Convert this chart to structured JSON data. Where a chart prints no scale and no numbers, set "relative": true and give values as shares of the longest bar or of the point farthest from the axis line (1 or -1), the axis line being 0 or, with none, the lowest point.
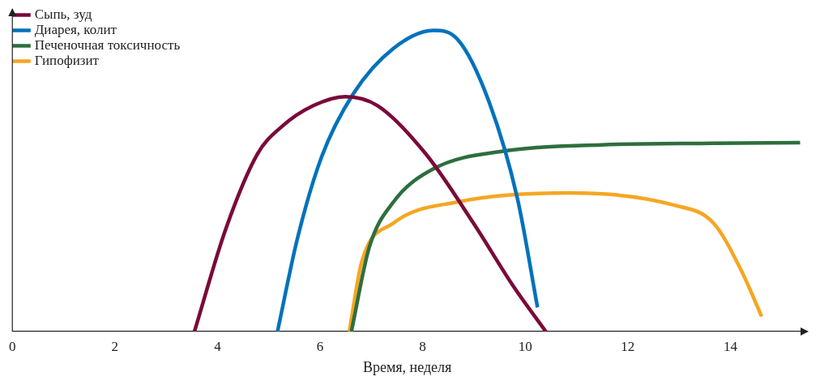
{
  "chart_data": {
    "type": "line",
    "xlabel": "Время, неделя",
    "relative": true,
    "xlim": [
      0,
      15.4
    ],
    "xticks": [
      0,
      2,
      4,
      6,
      8,
      10,
      12,
      14
    ],
    "legend": "top left",
    "grid": false,
    "marker": "none",
    "line_style": "solid",
    "series": [
      {
        "name": "Сыпь, зуд",
        "color": "#7a0a3a",
        "x": [
          3.55,
          4.16,
          4.78,
          5.25,
          5.87,
          6.49,
          7.12,
          8.06,
          8.99,
          9.77,
          10.4
        ],
        "values": [
          0,
          0.34,
          0.59,
          0.68,
          0.75,
          0.78,
          0.75,
          0.59,
          0.36,
          0.15,
          0
        ]
      },
      {
        "name": "Диарея, колит",
        "color": "#0072bc",
        "x": [
          5.17,
          5.56,
          6.03,
          6.65,
          7.43,
          8.21,
          8.68,
          9.3,
          9.85,
          10.24
        ],
        "values": [
          0,
          0.31,
          0.58,
          0.79,
          0.94,
          1,
          0.97,
          0.76,
          0.44,
          0.08
        ]
      },
      {
        "name": "Печеночная токсичность",
        "color": "#2e6e3e",
        "x": [
          6.61,
          6.96,
          7.43,
          8.21,
          9.62,
          11.49,
          13.67,
          15.36
        ],
        "values": [
          0,
          0.28,
          0.43,
          0.54,
          0.6,
          0.62,
          0.625,
          0.627
        ]
      },
      {
        "name": "Гипофизит",
        "color": "#f5a623",
        "x": [
          6.57,
          6.81,
          7.43,
          8.68,
          10.86,
          12.89,
          13.67,
          14.22,
          14.61
        ],
        "values": [
          0,
          0.23,
          0.36,
          0.43,
          0.46,
          0.42,
          0.36,
          0.2,
          0.05
        ]
      }
    ]
  }
}
